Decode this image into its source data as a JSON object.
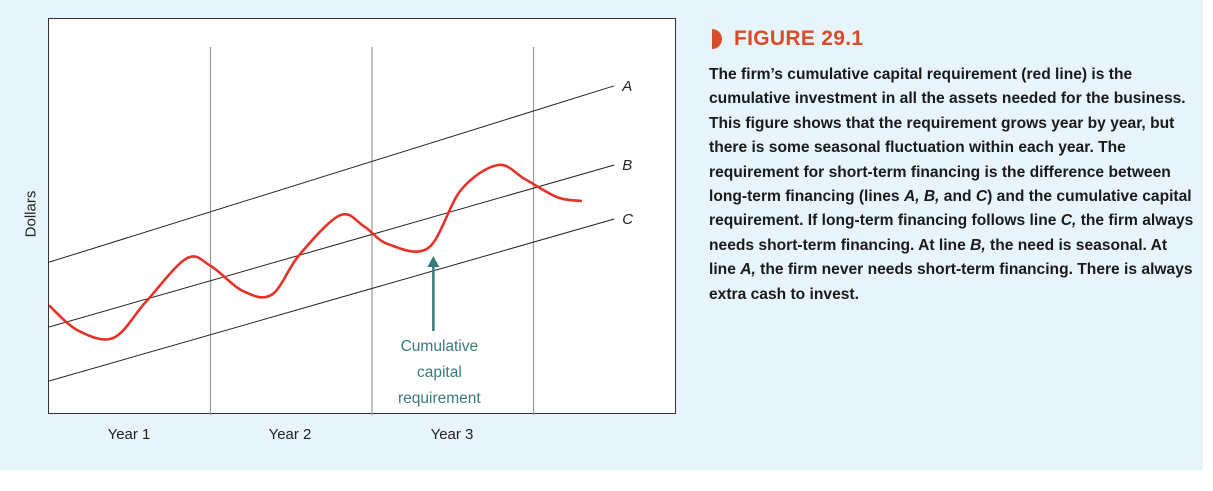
{
  "figure": {
    "label": "FIGURE 29.1",
    "caption_parts": [
      "The firm’s cumulative capital requirement (red line) is the cumulative investment in all the assets needed for the business. This figure shows that the requirement grows year by year, but there is some seasonal fluctuation within each year. The requirement for short-term financing is the difference between long-term financing (lines ",
      "A, B,",
      " and ",
      "C",
      ") and the cumulative capital requirement. If long-term financing follows line ",
      "C,",
      " the firm always needs short-term financing. At line ",
      "B,",
      " the need is seasonal. At line ",
      "A,",
      " the firm never needs short-term financing. There is always extra cash to invest."
    ],
    "accent_color": "#d94c2a",
    "background_color": "#e8f4fb"
  },
  "chart_data": {
    "type": "line",
    "ylabel": "Dollars",
    "xlabel": "",
    "categories": [
      "Year 1",
      "Year 2",
      "Year 3"
    ],
    "x_range": [
      0,
      3.5
    ],
    "y_range": [
      0,
      100
    ],
    "grid": "vertical lines at year boundaries",
    "series": [
      {
        "name": "A",
        "kind": "straight",
        "color": "#222222",
        "points": [
          [
            0,
            38
          ],
          [
            3.5,
            87
          ]
        ]
      },
      {
        "name": "B",
        "kind": "straight",
        "color": "#222222",
        "points": [
          [
            0,
            20
          ],
          [
            3.5,
            65
          ]
        ]
      },
      {
        "name": "C",
        "kind": "straight",
        "color": "#222222",
        "points": [
          [
            0,
            5
          ],
          [
            3.5,
            50
          ]
        ]
      },
      {
        "name": "",
        "kind": "smooth",
        "color": "#e63228",
        "points": [
          [
            0,
            26
          ],
          [
            0.18,
            19
          ],
          [
            0.4,
            17
          ],
          [
            0.6,
            27
          ],
          [
            0.85,
            39
          ],
          [
            1.0,
            37
          ],
          [
            1.2,
            30
          ],
          [
            1.38,
            29
          ],
          [
            1.55,
            40
          ],
          [
            1.8,
            51
          ],
          [
            1.95,
            48
          ],
          [
            2.1,
            43
          ],
          [
            2.35,
            42
          ],
          [
            2.55,
            58
          ],
          [
            2.78,
            65
          ],
          [
            2.95,
            61
          ],
          [
            3.15,
            56
          ],
          [
            3.3,
            55
          ]
        ]
      }
    ],
    "annotations": [
      {
        "text": "Cumulative capital requirement",
        "lines": [
          "Cumulative",
          "capital",
          "requirement"
        ],
        "points_to_x": 2.38,
        "color": "#3a7a7a"
      }
    ]
  }
}
